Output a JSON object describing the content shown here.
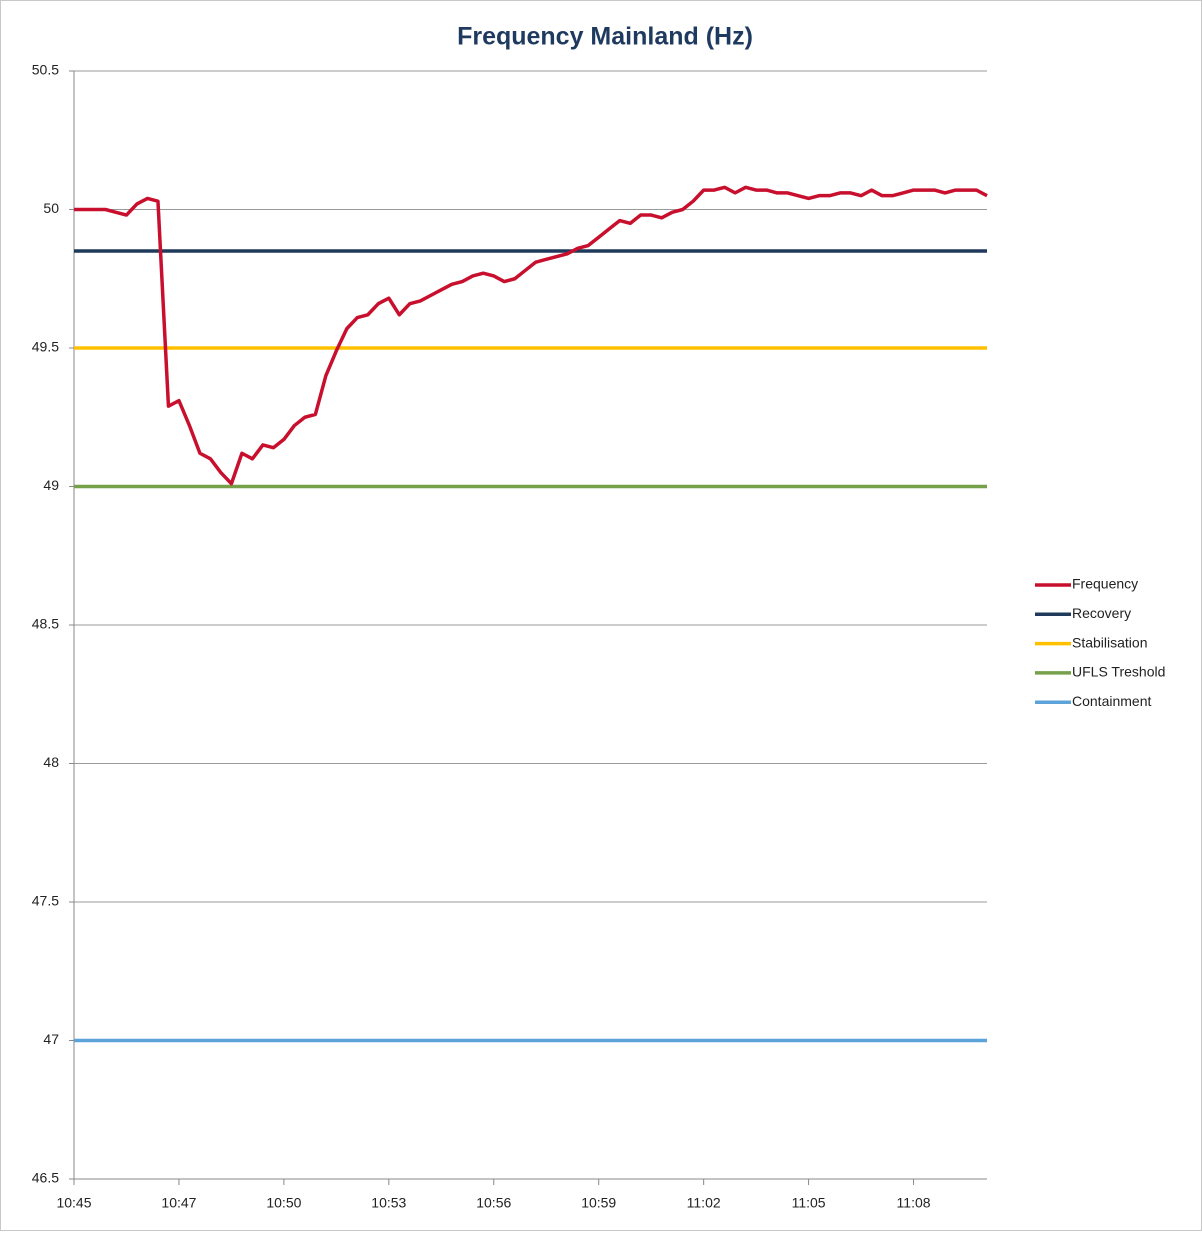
{
  "chart_data": {
    "type": "line",
    "title": "Frequency Mainland (Hz)",
    "categories": [
      "10:45",
      null,
      null,
      null,
      null,
      null,
      null,
      null,
      null,
      null,
      "10:47",
      null,
      null,
      null,
      null,
      null,
      null,
      null,
      null,
      null,
      "10:50",
      null,
      null,
      null,
      null,
      null,
      null,
      null,
      null,
      null,
      "10:53",
      null,
      null,
      null,
      null,
      null,
      null,
      null,
      null,
      null,
      "10:56",
      null,
      null,
      null,
      null,
      null,
      null,
      null,
      null,
      null,
      "10:59",
      null,
      null,
      null,
      null,
      null,
      null,
      null,
      null,
      null,
      "11:02",
      null,
      null,
      null,
      null,
      null,
      null,
      null,
      null,
      null,
      "11:05",
      null,
      null,
      null,
      null,
      null,
      null,
      null,
      null,
      null,
      "11:08",
      null,
      null,
      null,
      null,
      null,
      null,
      null
    ],
    "ylim": [
      46.5,
      50.5
    ],
    "yticks": [
      46.5,
      47,
      47.5,
      48,
      48.5,
      49,
      49.5,
      50,
      50.5
    ],
    "grid": true,
    "legend": "right",
    "series": [
      {
        "name": "Frequency",
        "color": "#c8102e",
        "values": [
          50.0,
          50.0,
          50.0,
          50.0,
          49.99,
          49.98,
          50.02,
          50.04,
          50.03,
          49.29,
          49.31,
          49.22,
          49.12,
          49.1,
          49.05,
          49.01,
          49.12,
          49.1,
          49.15,
          49.14,
          49.17,
          49.22,
          49.25,
          49.26,
          49.4,
          49.49,
          49.57,
          49.61,
          49.62,
          49.66,
          49.68,
          49.62,
          49.66,
          49.67,
          49.69,
          49.71,
          49.73,
          49.74,
          49.76,
          49.77,
          49.76,
          49.74,
          49.75,
          49.78,
          49.81,
          49.82,
          49.83,
          49.84,
          49.86,
          49.87,
          49.9,
          49.93,
          49.96,
          49.95,
          49.98,
          49.98,
          49.97,
          49.99,
          50.0,
          50.03,
          50.07,
          50.07,
          50.08,
          50.06,
          50.08,
          50.07,
          50.07,
          50.06,
          50.06,
          50.05,
          50.04,
          50.05,
          50.05,
          50.06,
          50.06,
          50.05,
          50.07,
          50.05,
          50.05,
          50.06,
          50.07,
          50.07,
          50.07,
          50.06,
          50.07,
          50.07,
          50.07,
          50.05
        ]
      },
      {
        "name": "Recovery",
        "color": "#1f3a5a",
        "values": [
          49.85,
          49.85,
          49.85,
          49.85,
          49.85,
          49.85,
          49.85,
          49.85,
          49.85,
          49.85,
          49.85,
          49.85,
          49.85,
          49.85,
          49.85,
          49.85,
          49.85,
          49.85,
          49.85,
          49.85,
          49.85,
          49.85,
          49.85,
          49.85,
          49.85,
          49.85,
          49.85,
          49.85,
          49.85,
          49.85,
          49.85,
          49.85,
          49.85,
          49.85,
          49.85,
          49.85,
          49.85,
          49.85,
          49.85,
          49.85,
          49.85,
          49.85,
          49.85,
          49.85,
          49.85,
          49.85,
          49.85,
          49.85,
          49.85,
          49.85,
          49.85,
          49.85,
          49.85,
          49.85,
          49.85,
          49.85,
          49.85,
          49.85,
          49.85,
          49.85,
          49.85,
          49.85,
          49.85,
          49.85,
          49.85,
          49.85,
          49.85,
          49.85,
          49.85,
          49.85,
          49.85,
          49.85,
          49.85,
          49.85,
          49.85,
          49.85,
          49.85,
          49.85,
          49.85,
          49.85,
          49.85,
          49.85,
          49.85,
          49.85,
          49.85,
          49.85,
          49.85,
          49.85
        ]
      },
      {
        "name": "Stabilisation",
        "color": "#ffc000",
        "values": [
          49.5,
          49.5,
          49.5,
          49.5,
          49.5,
          49.5,
          49.5,
          49.5,
          49.5,
          49.5,
          49.5,
          49.5,
          49.5,
          49.5,
          49.5,
          49.5,
          49.5,
          49.5,
          49.5,
          49.5,
          49.5,
          49.5,
          49.5,
          49.5,
          49.5,
          49.5,
          49.5,
          49.5,
          49.5,
          49.5,
          49.5,
          49.5,
          49.5,
          49.5,
          49.5,
          49.5,
          49.5,
          49.5,
          49.5,
          49.5,
          49.5,
          49.5,
          49.5,
          49.5,
          49.5,
          49.5,
          49.5,
          49.5,
          49.5,
          49.5,
          49.5,
          49.5,
          49.5,
          49.5,
          49.5,
          49.5,
          49.5,
          49.5,
          49.5,
          49.5,
          49.5,
          49.5,
          49.5,
          49.5,
          49.5,
          49.5,
          49.5,
          49.5,
          49.5,
          49.5,
          49.5,
          49.5,
          49.5,
          49.5,
          49.5,
          49.5,
          49.5,
          49.5,
          49.5,
          49.5,
          49.5,
          49.5,
          49.5,
          49.5,
          49.5,
          49.5,
          49.5,
          49.5
        ]
      },
      {
        "name": "UFLS Treshold",
        "color": "#77a04a",
        "values": [
          49,
          49,
          49,
          49,
          49,
          49,
          49,
          49,
          49,
          49,
          49,
          49,
          49,
          49,
          49,
          49,
          49,
          49,
          49,
          49,
          49,
          49,
          49,
          49,
          49,
          49,
          49,
          49,
          49,
          49,
          49,
          49,
          49,
          49,
          49,
          49,
          49,
          49,
          49,
          49,
          49,
          49,
          49,
          49,
          49,
          49,
          49,
          49,
          49,
          49,
          49,
          49,
          49,
          49,
          49,
          49,
          49,
          49,
          49,
          49,
          49,
          49,
          49,
          49,
          49,
          49,
          49,
          49,
          49,
          49,
          49,
          49,
          49,
          49,
          49,
          49,
          49,
          49,
          49,
          49,
          49,
          49,
          49,
          49,
          49,
          49,
          49,
          49
        ]
      },
      {
        "name": "Containment",
        "color": "#5ba3d9",
        "values": [
          47,
          47,
          47,
          47,
          47,
          47,
          47,
          47,
          47,
          47,
          47,
          47,
          47,
          47,
          47,
          47,
          47,
          47,
          47,
          47,
          47,
          47,
          47,
          47,
          47,
          47,
          47,
          47,
          47,
          47,
          47,
          47,
          47,
          47,
          47,
          47,
          47,
          47,
          47,
          47,
          47,
          47,
          47,
          47,
          47,
          47,
          47,
          47,
          47,
          47,
          47,
          47,
          47,
          47,
          47,
          47,
          47,
          47,
          47,
          47,
          47,
          47,
          47,
          47,
          47,
          47,
          47,
          47,
          47,
          47,
          47,
          47,
          47,
          47,
          47,
          47,
          47,
          47,
          47,
          47,
          47,
          47,
          47,
          47,
          47,
          47,
          47,
          47
        ]
      }
    ]
  }
}
